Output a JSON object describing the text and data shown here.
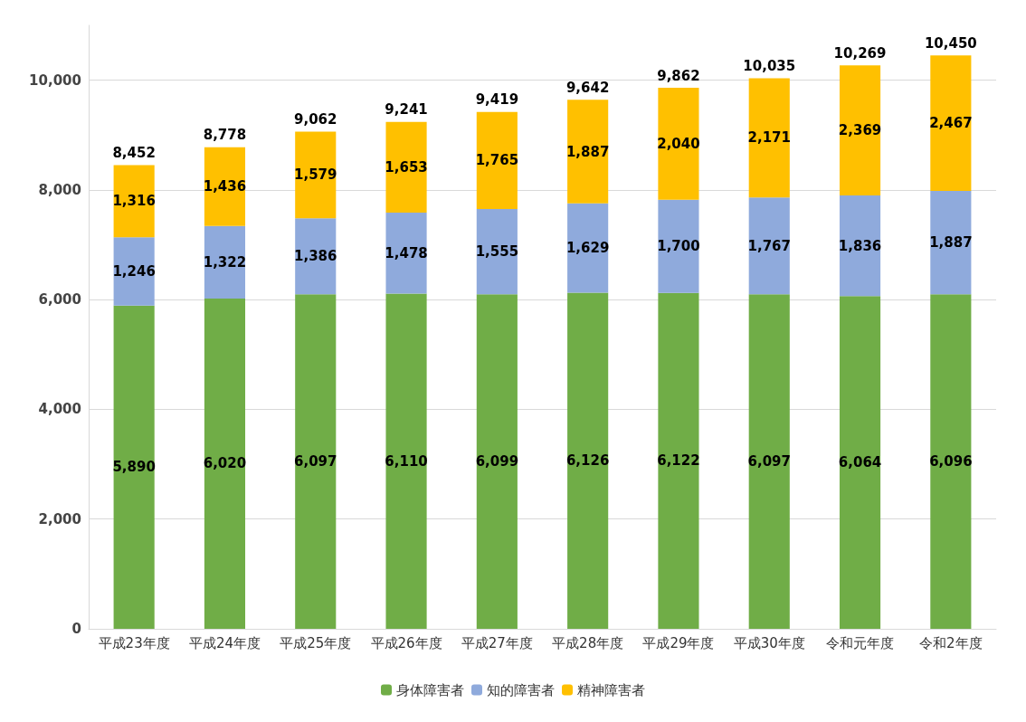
{
  "chart_data": {
    "type": "bar",
    "stacked": true,
    "categories": [
      "平成23年度",
      "平成24年度",
      "平成25年度",
      "平成26年度",
      "平成27年度",
      "平成28年度",
      "平成29年度",
      "平成30年度",
      "令和元年度",
      "令和2年度"
    ],
    "series": [
      {
        "name": "身体障害者",
        "color": "#70ad47",
        "values": [
          5890,
          6020,
          6097,
          6110,
          6099,
          6126,
          6122,
          6097,
          6064,
          6096
        ],
        "value_labels": [
          "5,890",
          "6,020",
          "6,097",
          "6,110",
          "6,099",
          "6,126",
          "6,122",
          "6,097",
          "6,064",
          "6,096"
        ]
      },
      {
        "name": "知的障害者",
        "color": "#8faadc",
        "values": [
          1246,
          1322,
          1386,
          1478,
          1555,
          1629,
          1700,
          1767,
          1836,
          1887
        ],
        "value_labels": [
          "1,246",
          "1,322",
          "1,386",
          "1,478",
          "1,555",
          "1,629",
          "1,700",
          "1,767",
          "1,836",
          "1,887"
        ]
      },
      {
        "name": "精神障害者",
        "color": "#ffc000",
        "values": [
          1316,
          1436,
          1579,
          1653,
          1765,
          1887,
          2040,
          2171,
          2369,
          2467
        ],
        "value_labels": [
          "1,316",
          "1,436",
          "1,579",
          "1,653",
          "1,765",
          "1,887",
          "2,040",
          "2,171",
          "2,369",
          "2,467"
        ]
      }
    ],
    "totals": [
      "8,452",
      "8,778",
      "9,062",
      "9,241",
      "9,419",
      "9,642",
      "9,862",
      "10,035",
      "10,269",
      "10,450"
    ],
    "ylim": [
      0,
      11000
    ],
    "yticks": [
      0,
      {
        "value": 2000,
        "label": "2,000"
      },
      {
        "value": 4000,
        "label": "4,000"
      },
      {
        "value": 6000,
        "label": "6,000"
      },
      {
        "value": 8000,
        "label": "8,000"
      },
      {
        "value": 10000,
        "label": "10,000"
      }
    ],
    "grid": "y",
    "legend": "bottom"
  }
}
